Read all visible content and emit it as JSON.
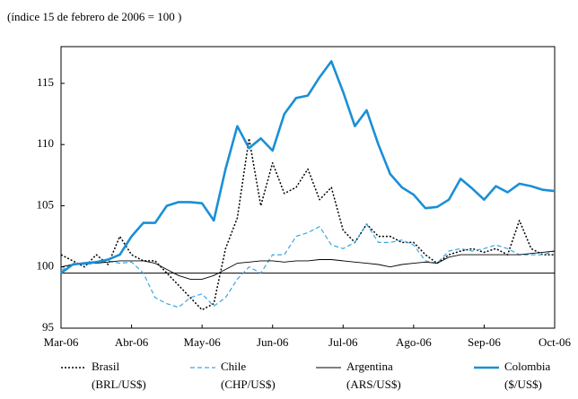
{
  "chart_data": {
    "type": "line",
    "subtitle": "(índice 15 de febrero de 2006 = 100 )",
    "categories": [
      "Mar-06",
      null,
      null,
      null,
      null,
      null,
      "Abr-06",
      null,
      null,
      null,
      null,
      null,
      "May-06",
      null,
      null,
      null,
      null,
      null,
      "Jun-06",
      null,
      null,
      null,
      null,
      null,
      "Jul-06",
      null,
      null,
      null,
      null,
      null,
      "Ago-06",
      null,
      null,
      null,
      null,
      null,
      "Sep-06",
      null,
      null,
      null,
      null,
      null,
      "Oct-06"
    ],
    "ylim": [
      95,
      118
    ],
    "yticks": [
      95,
      100,
      105,
      110,
      115
    ],
    "reference_line": 99.5,
    "series": [
      {
        "name": "Brasil",
        "unit": "(BRL/US$)",
        "color": "#000000",
        "dash": "2,2",
        "width": 1.5,
        "values": [
          101,
          100.5,
          100,
          101,
          100.2,
          102.5,
          101,
          100.5,
          100.5,
          99.5,
          98.5,
          97.5,
          96.5,
          97,
          101.5,
          104,
          110.5,
          105,
          108.5,
          106,
          106.5,
          108,
          105.5,
          106.5,
          103,
          102,
          103.5,
          102.5,
          102.5,
          102,
          102,
          101,
          100.3,
          101,
          101.3,
          101.5,
          101.2,
          101.5,
          101,
          103.8,
          101.5,
          101,
          101
        ]
      },
      {
        "name": "Chile",
        "unit": "(CHP/US$)",
        "color": "#3ba7e0",
        "dash": "5,3",
        "width": 1.2,
        "values": [
          99.7,
          100.3,
          100.2,
          100.3,
          100.5,
          100.3,
          100.4,
          99.5,
          97.5,
          97,
          96.7,
          97.5,
          97.8,
          96.8,
          97.5,
          99,
          100,
          99.5,
          101,
          101,
          102.5,
          102.8,
          103.3,
          101.8,
          101.5,
          102,
          103.5,
          102,
          102,
          102.2,
          101.8,
          100.5,
          100.3,
          101.3,
          101.5,
          101.3,
          101.5,
          101.8,
          101.5,
          101,
          101,
          101,
          101.3
        ]
      },
      {
        "name": "Argentina",
        "unit": "(ARS/US$)",
        "color": "#000000",
        "dash": "",
        "width": 0.9,
        "values": [
          100,
          100.2,
          100.3,
          100.3,
          100.4,
          100.5,
          100.5,
          100.5,
          100.3,
          99.8,
          99.3,
          99,
          99,
          99.3,
          99.8,
          100.3,
          100.4,
          100.5,
          100.5,
          100.4,
          100.5,
          100.5,
          100.6,
          100.6,
          100.5,
          100.4,
          100.3,
          100.2,
          100,
          100.2,
          100.3,
          100.4,
          100.3,
          100.8,
          101,
          101,
          101,
          101,
          101,
          101,
          101.1,
          101.2,
          101.3
        ]
      },
      {
        "name": "Colombia",
        "unit": "($/US$)",
        "color": "#1a8fd6",
        "dash": "",
        "width": 2.6,
        "values": [
          99.5,
          100.2,
          100.3,
          100.4,
          100.6,
          101,
          102.5,
          103.6,
          103.6,
          105,
          105.3,
          105.3,
          105.2,
          103.8,
          108,
          111.5,
          109.7,
          110.5,
          109.5,
          112.5,
          113.8,
          114,
          115.5,
          116.8,
          114.3,
          111.5,
          112.8,
          110,
          107.6,
          106.5,
          105.9,
          104.8,
          104.9,
          105.5,
          107.2,
          106.4,
          105.5,
          106.6,
          106.1,
          106.8,
          106.6,
          106.3,
          106.2
        ]
      }
    ]
  }
}
